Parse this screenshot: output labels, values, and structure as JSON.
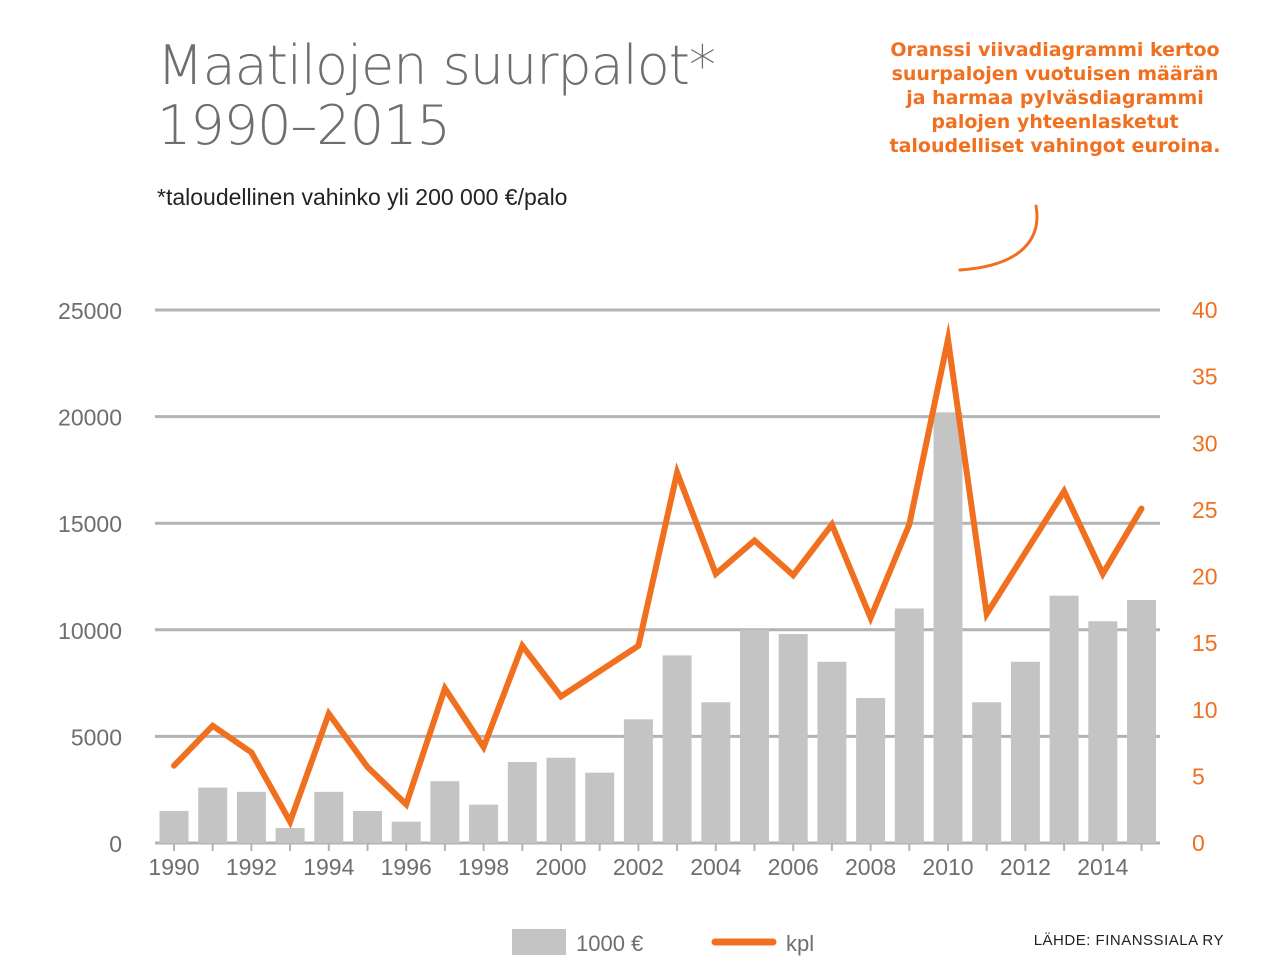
{
  "title_line1": "Maatilojen suurpalot*",
  "title_line2": "1990–2015",
  "subtitle": "*taloudellinen vahinko yli 200 000 €/palo",
  "callout": "Oranssi viivadiagrammi kertoo suurpalojen vuotuisen määrän ja harmaa pylväsdiagrammi palojen yhteenlasketut taloudelliset vahingot euroina.",
  "source": "LÄHDE: FINANSSIALA RY",
  "colors": {
    "bar": "#c4c4c4",
    "line": "#f07020",
    "grid": "#b3b3b3",
    "left_axis_text": "#6e6e6e",
    "right_axis_text": "#f07020"
  },
  "chart_data": {
    "type": "bar",
    "title": "Maatilojen suurpalot* 1990–2015",
    "subtitle": "*taloudellinen vahinko yli 200 000 €/palo",
    "categories": [
      "1990",
      "1991",
      "1992",
      "1993",
      "1994",
      "1995",
      "1996",
      "1997",
      "1998",
      "1999",
      "2000",
      "2001",
      "2002",
      "2003",
      "2004",
      "2005",
      "2006",
      "2007",
      "2008",
      "2009",
      "2010",
      "2011",
      "2012",
      "2013",
      "2014",
      "2015"
    ],
    "x_tick_labels": [
      "1990",
      "1992",
      "1994",
      "1996",
      "1998",
      "2000",
      "2002",
      "2004",
      "2006",
      "2008",
      "2010",
      "2012",
      "2014"
    ],
    "series": [
      {
        "name": "1000 €",
        "type": "bar",
        "axis": "left",
        "values": [
          1500,
          2600,
          2400,
          700,
          2400,
          1500,
          1000,
          2900,
          1800,
          3800,
          4000,
          3300,
          5800,
          8800,
          6600,
          10000,
          9800,
          8500,
          6800,
          11000,
          20200,
          6600,
          8500,
          11600,
          10400,
          11400
        ]
      },
      {
        "name": "kpl",
        "type": "line",
        "axis": "right",
        "values": [
          5.8,
          8.8,
          6.8,
          1.6,
          9.7,
          5.7,
          2.9,
          11.6,
          7.2,
          14.8,
          11.0,
          12.9,
          14.8,
          27.8,
          20.2,
          22.7,
          20.1,
          23.9,
          16.9,
          23.9,
          37.8,
          17.2,
          21.8,
          26.4,
          20.2,
          25.1
        ]
      }
    ],
    "y_left": {
      "ylim": [
        0,
        25000
      ],
      "ticks": [
        "0",
        "5000",
        "10000",
        "15000",
        "20000",
        "25000"
      ]
    },
    "y_right": {
      "ylim": [
        0,
        40
      ],
      "ticks": [
        "0",
        "5",
        "10",
        "15",
        "20",
        "25",
        "30",
        "35",
        "40"
      ]
    },
    "grid": true,
    "legend_position": "bottom-center"
  }
}
